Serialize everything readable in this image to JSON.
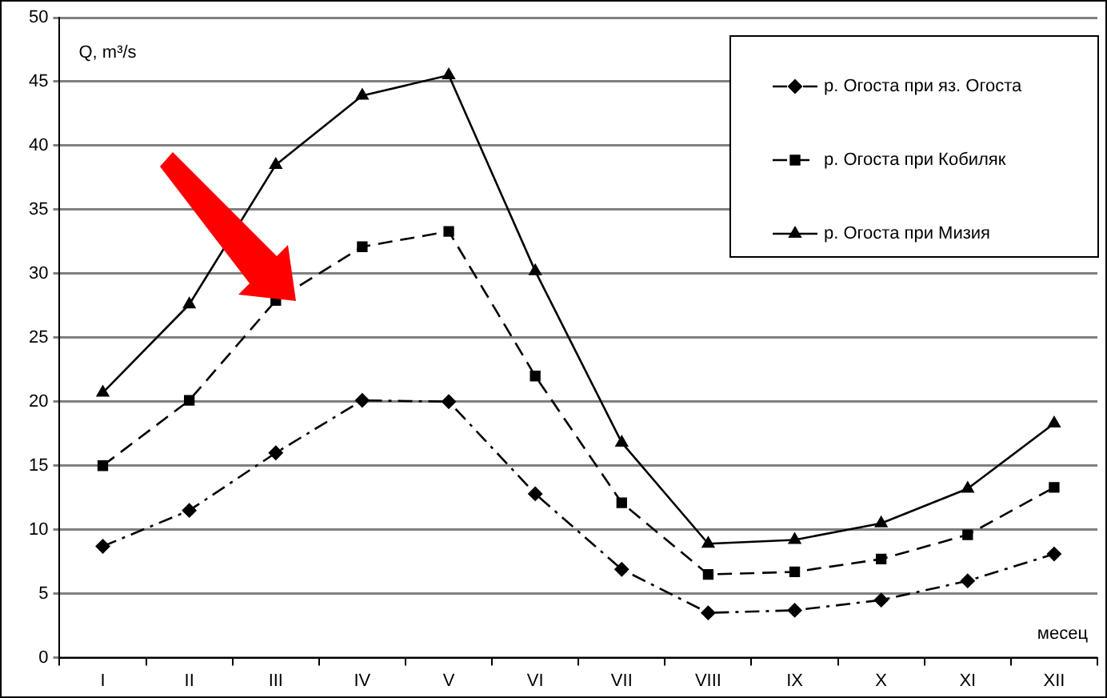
{
  "chart_data": {
    "type": "line",
    "xlabel": "месец",
    "ylabel": "Q, m³/s",
    "categories": [
      "I",
      "II",
      "III",
      "IV",
      "V",
      "VI",
      "VII",
      "VIII",
      "IX",
      "X",
      "XI",
      "XII"
    ],
    "series": [
      {
        "name": "р. Огоста при яз. Огоста",
        "color": "#000000",
        "marker": "diamond",
        "line_style": "dotted",
        "values": [
          8.7,
          11.5,
          16,
          20.1,
          20,
          12.8,
          6.9,
          3.5,
          3.7,
          4.5,
          6,
          8.1
        ]
      },
      {
        "name": "р. Огоста при Кобиляк",
        "color": "#000000",
        "marker": "square",
        "line_style": "dashed",
        "values": [
          15,
          20.1,
          27.9,
          32.1,
          33.3,
          22,
          12.1,
          6.5,
          6.7,
          7.7,
          9.6,
          13.3
        ]
      },
      {
        "name": "р. Огоста при Мизия",
        "color": "#000000",
        "marker": "triangle",
        "line_style": "solid",
        "values": [
          20.7,
          27.6,
          38.5,
          43.9,
          45.5,
          30.2,
          16.8,
          8.9,
          9.2,
          10.5,
          13.2,
          18.3
        ]
      }
    ],
    "ylim": [
      0,
      50
    ],
    "yticks": [
      0,
      5,
      10,
      15,
      20,
      25,
      30,
      35,
      40,
      45,
      50
    ],
    "grid": "y",
    "legend": "top right"
  }
}
